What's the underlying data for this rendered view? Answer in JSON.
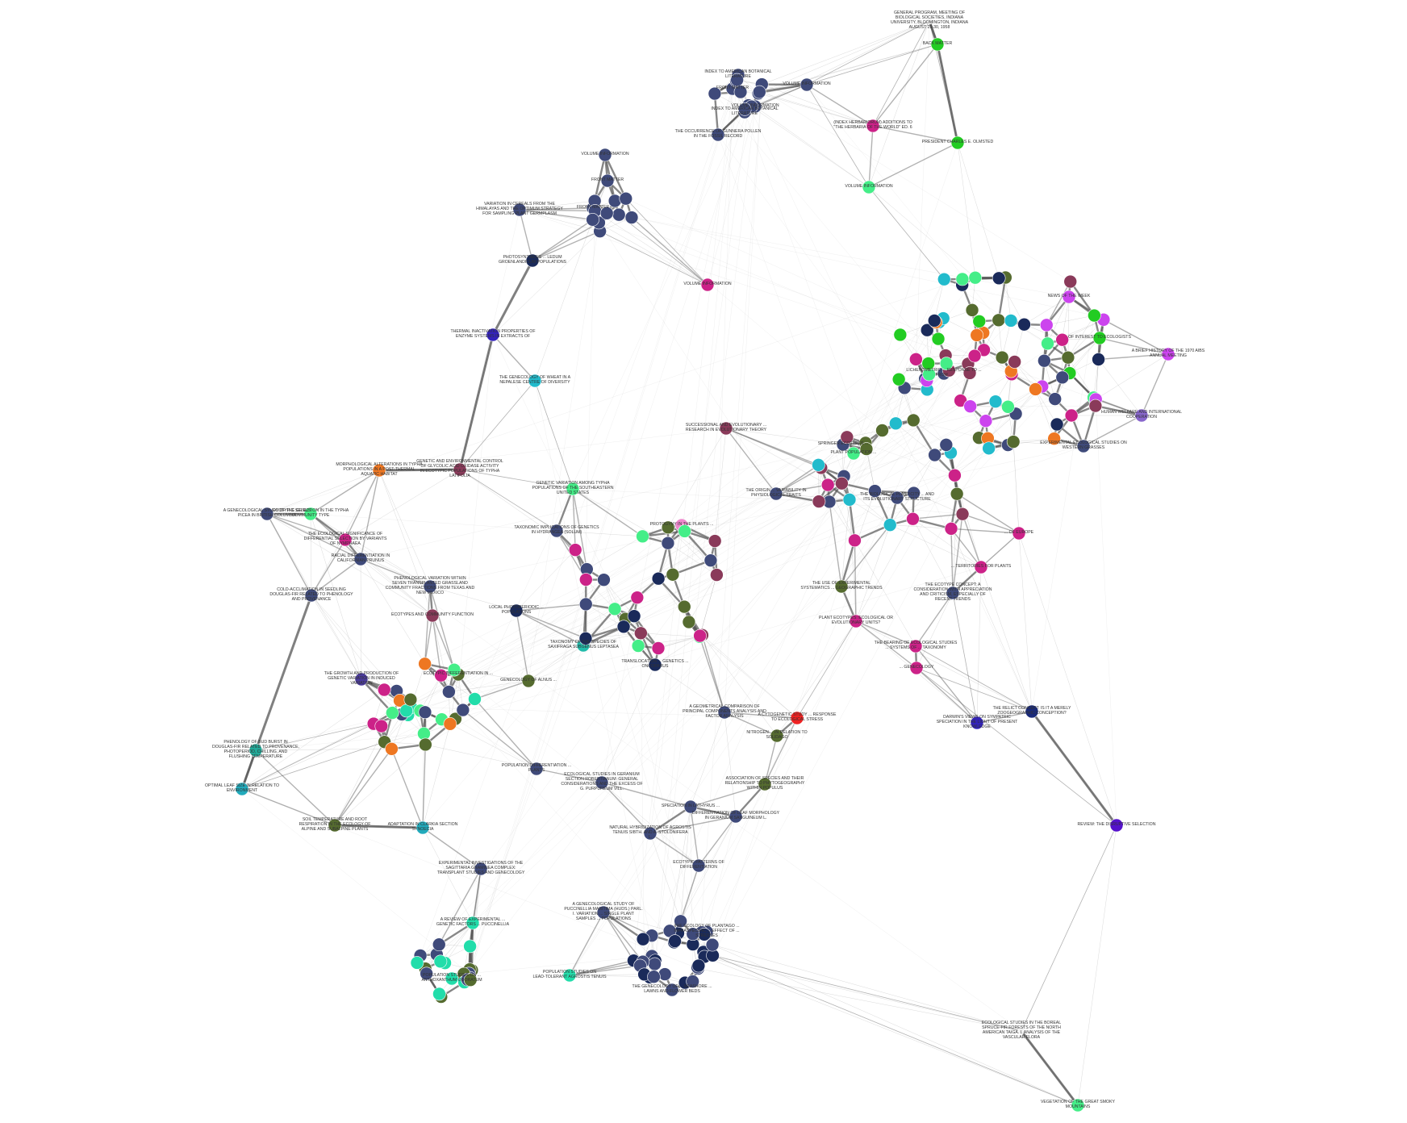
{
  "graph": {
    "edge_color": "#555555",
    "nodes": [
      {
        "id": "general-program-meeting",
        "label": "GENERAL PROGRAM, MEETING OF BIOLOGICAL SOCIETIES, INDIANA UNIVERSITY, BLOOMINGTON, INDIANA AUGUST 25-30, 1958",
        "color": "#f2f2f2"
      },
      {
        "id": "back-matter-top",
        "label": "BACK MATTER",
        "color": "#22cc22"
      },
      {
        "id": "president-olmsted",
        "label": "PRESIDENT CHARLES E. OLMSTED",
        "color": "#22cc22"
      },
      {
        "id": "index-herbarium",
        "label": "(INDEX HERBARIORUM) ADDITIONS TO \"THE HERBARIA OF THE WORLD\" ED. 6",
        "color": "#cc2288"
      },
      {
        "id": "volume-information-a",
        "label": "VOLUME INFORMATION",
        "color": "#44ee88"
      },
      {
        "id": "volume-information-b",
        "label": "VOLUME INFORMATION",
        "color": "#3f4a7a"
      },
      {
        "id": "index-american",
        "label": "INDEX TO AMERICAN BOTANICAL LITERATURE",
        "color": "#3f4a7a"
      },
      {
        "id": "index-to-american-2",
        "label": "INDEX TO AMERICAN BOTANICAL LITERATURE",
        "color": "#3f4a7a"
      },
      {
        "id": "front-matter-a",
        "label": "FRONT MATTER",
        "color": "#3f4a7a"
      },
      {
        "id": "volume-information-c",
        "label": "VOLUME INFORMATION",
        "color": "#3f4a7a"
      },
      {
        "id": "gunnera-pollen",
        "label": "THE OCCURRENCE OF GUNNERA POLLEN IN THE FOSSIL RECORD",
        "color": "#3f4a7a"
      },
      {
        "id": "volume-information-d",
        "label": "VOLUME INFORMATION",
        "color": "#3f4a7a"
      },
      {
        "id": "front-matter-b",
        "label": "FRONT MATTER",
        "color": "#3f4a7a"
      },
      {
        "id": "cereals-himalayas",
        "label": "VARIATION IN CEREALS FROM THE HIMALAYAS AND THE OPTIMUM STRATEGY FOR SAMPLING PLANT GERMPLASM",
        "color": "#3f4a7a"
      },
      {
        "id": "front-matter-c",
        "label": "FRONT MATTER",
        "color": "#3f4a7a"
      },
      {
        "id": "volume-information-magenta",
        "label": "VOLUME INFORMATION",
        "color": "#cc2288"
      },
      {
        "id": "ledum-photosynthesis",
        "label": "PHOTOSYNTHESIS ... LEDUM GROENLANDICUM POPULATIONS",
        "color": "#1a2a5a"
      },
      {
        "id": "thermal-inactivation",
        "label": "THERMAL INACTIVATION PROPERTIES OF ENZYME SYSTEMS IN EXTRACTS OF",
        "color": "#3322bb"
      },
      {
        "id": "genecology-wheat",
        "label": "THE GENECOLOGY OF WHEAT IN A NEPALESE CENTRE OF DIVERSITY",
        "color": "#22bbcc"
      },
      {
        "id": "genetic-environmental-control",
        "label": "GENETIC AND ENVIRONMENTAL CONTROL OF GLYCOLIC ACID OXIDASE ACTIVITY IN ECOTYPIC POPULATIONS OF TYPHA LATIFOLIA",
        "color": "#8a3a5a"
      },
      {
        "id": "morphological-typha",
        "label": "MORPHOLOGICAL ALTERATIONS IN TYPHA POPULATIONS IN A POST-THERMAL AQUATIC HABITAT",
        "color": "#ee7722"
      },
      {
        "id": "genecological-picea",
        "label": "A GENECOLOGICAL STUDY OF THE GENUS PICEA IN BRITISH COLUMBIA",
        "color": "#3f4a7a"
      },
      {
        "id": "typha-ecotype",
        "label": "ECOTYPIC SELECTION IN THE TYPHA COMMUNITY TYPE",
        "color": "#44ee88"
      },
      {
        "id": "nymphaea",
        "label": "THE ECOLOGICAL SIGNIFICANCE OF DIFFERENTIAL SELECTION BY VARIANTS OF NYMPHAEA",
        "color": "#cc2288"
      },
      {
        "id": "racial-californian",
        "label": "RACIAL DIFFERENTIATION IN CALIFORNIAN PRUNUS",
        "color": "#3f4a7a"
      },
      {
        "id": "cold-acclimation",
        "label": "COLD-ACCLIMATION IN SEEDLING DOUGLAS-FIR RELATED TO PHENOLOGY AND PROVENANCE",
        "color": "#3f4a7a"
      },
      {
        "id": "genetic-variation-typha",
        "label": "GENETIC VARIATION AMONG TYPHA POPULATIONS OF THE SOUTHEASTERN UNITED STATES",
        "color": "#44ee88"
      },
      {
        "id": "taxonomic-implications",
        "label": "TAXONOMIC IMPLICATIONS OF GENETICS IN HYDRANGEA (SOLUM)",
        "color": "#3f4a7a"
      },
      {
        "id": "protogyny",
        "label": "PROTOGYNY IN THE PLANTS ...",
        "color": "#ee88cc"
      },
      {
        "id": "phenological-variation",
        "label": "PHENOLOGICAL VARIATION WITHIN SEVEN TRANSPLANTED GRASSLAND COMMUNITY FRACTIONS FROM TEXAS AND NEW MEXICO",
        "color": "#3f4a7a"
      },
      {
        "id": "ecotypes-community-function",
        "label": "ECOTYPES AND COMMUNITY FUNCTION",
        "color": "#8a3a5a"
      },
      {
        "id": "local-photoperiod",
        "label": "LOCAL PHOTOPERIODIC ... POPULATIONS",
        "color": "#1a2a5a"
      },
      {
        "id": "taxonomy-saxifraga",
        "label": "TAXONOMY OF THE SPECIES OF SAXIFRAGA SUBGENUS LEPTASEA",
        "color": "#22bbaa"
      },
      {
        "id": "growth-and-production",
        "label": "THE GROWTH AND PRODUCTION OF GENETIC VARIATION IN INDUCED VARIATION",
        "color": "#4a3a9a"
      },
      {
        "id": "ecotypic-differentiation",
        "label": "ECOTYPIC DIFFERENTIATION IN ...",
        "color": "#556b2f"
      },
      {
        "id": "genecological-alnus",
        "label": "GENECOLOGY OF ALNUS ...",
        "color": "#556b2f"
      },
      {
        "id": "phenology-douglas",
        "label": "PHENOLOGY OF BUD BURST IN DOUGLAS-FIR RELATED TO PROVENANCE, PHOTOPERIOD, CHILLING, AND FLUSHING TEMPERATURE",
        "color": "#22aa99"
      },
      {
        "id": "optimal-leaf",
        "label": "OPTIMAL LEAF SIZE IN RELATION TO ENVIRONMENT",
        "color": "#22aabb"
      },
      {
        "id": "soil-temperature",
        "label": "SOIL TEMPERATURE AND ROOT RESPIRATION IN THE ECOLOGY OF ALPINE AND SUBALPINE PLANTS",
        "color": "#556b2f"
      },
      {
        "id": "adaptation-clarkia",
        "label": "ADAPTATION IN CLARKIA SECTION SYNOECIA",
        "color": "#22aabb"
      },
      {
        "id": "experimental-investigations",
        "label": "EXPERIMENTAL INVESTIGATIONS OF THE SAGITTARIA GRAMINEA COMPLEX: TRANSPLANT STUDIES AND GENECOLOGY",
        "color": "#3f4a7a"
      },
      {
        "id": "puccinellia",
        "label": "A REVIEW OF EXPERIMENTAL ... GENETIC FACTORS ... PUCCINELLIA",
        "color": "#22ddaa"
      },
      {
        "id": "population-studies-odoratum",
        "label": "POPULATION STUDIES ON ... ANTHOXANTHUM ODORATUM",
        "color": "#22ddaa"
      },
      {
        "id": "population-studies-agrostis",
        "label": "POPULATION STUDIES ON LEAD-TOLERANT AGROSTIS TENUIS",
        "color": "#22ddaa"
      },
      {
        "id": "population-differentiation",
        "label": "POPULATION DIFFERENTIATION ... PLANTS",
        "color": "#3f4a7a"
      },
      {
        "id": "ecological-geranium",
        "label": "ECOLOGICAL STUDIES IN GERANIUM SECTION ROBERTIANUM: GENERAL CONSIDERATIONS AND THE EXCESS OF G. PURPUREUM VILL.",
        "color": "#3f4a7a"
      },
      {
        "id": "speciation-lathyrus",
        "label": "SPECIATION IN LATHYRUS ...",
        "color": "#3f4a7a"
      },
      {
        "id": "natural-hybridization",
        "label": "NATURAL HYBRIDIZATION OF AGROSTIS TENUIS SIBTH. AND A. STOLONIFERA L.",
        "color": "#3f4a7a"
      },
      {
        "id": "differentiation-geranium",
        "label": "DIFFERENTIATION OF LEAF MORPHOLOGY IN GERANIUM SANGUINEUM L.",
        "color": "#3f4a7a"
      },
      {
        "id": "ecotypic-patterns",
        "label": "ECOTYPIC PATTERNS OF DIFFERENTIATION",
        "color": "#3f4a7a"
      },
      {
        "id": "genecological-bromus",
        "label": "A GENECOLOGICAL STUDY OF PUCCINELLIA MARITIMA (HUDS.) PARL. I. VARIATION ... SINGLE PLANT SAMPLES ... POPULATIONS",
        "color": "#3f4a7a"
      },
      {
        "id": "genecology-seashore",
        "label": "THE GENECOLOGY OF ... SEASHORE ... LAWNS AND FLOWER BEDS",
        "color": "#3f4a7a"
      },
      {
        "id": "ecology-plantago",
        "label": "THE ECOLOGY OF PLANTAGO ... INFRASPECIFIC ... EFFECT OF ... STRESSES",
        "color": "#3f4a7a"
      },
      {
        "id": "geometric-comparison",
        "label": "A GEOMETRICAL COMPARISON OF PRINCIPAL COMPONENTS ANALYSIS AND FACTOR ANALYSIS",
        "color": "#3f4a7a"
      },
      {
        "id": "association-species",
        "label": "ASSOCIATION OF SPECIES AND THEIR RELATIONSHIP TO PHYTOGEOGRAPHY WITHIN POPULUS",
        "color": "#556b2f"
      },
      {
        "id": "cytogenetic-response",
        "label": "A CYTOGENETIC STUDY ... RESPONSE TO ECOLOGICAL STRESS",
        "color": "#ee2222"
      },
      {
        "id": "nitrogen-solidago",
        "label": "NITROGEN ... IN RELATION TO SOLIDAGO",
        "color": "#556b2f"
      },
      {
        "id": "translocation-genetics",
        "label": "TRANSLOCATION ... GENETICS ... ONCOPARUS",
        "color": "#1a2a5a"
      },
      {
        "id": "relict-zoogeographic",
        "label": "THE RELICT CONCEPT: IS IT A MERELY ZOOGEOGRAPHIC CONCEPTION?",
        "color": "#1a2a7a"
      },
      {
        "id": "darwins-views",
        "label": "DARWIN'S VIEWS ON SYMPATRIC SPECIATION IN THE LIGHT OF PRESENT KNOWLEDGE",
        "color": "#3322bb"
      },
      {
        "id": "review-disruptive",
        "label": "REVIEW: THE DISRUPTIVE SELECTION",
        "color": "#5511cc"
      },
      {
        "id": "boreal-spruce",
        "label": "ECOLOGICAL STUDIES IN THE BOREAL SPRUCE-FIR FORESTS OF THE NORTH AMERICAN TAIGA. I. ANALYSIS OF THE VASCULAR FLORA",
        "color": "#f2f2f2"
      },
      {
        "id": "great-smoky",
        "label": "VEGETATION OF THE GREAT SMOKY MOUNTAINS",
        "color": "#44ee88"
      },
      {
        "id": "biological-plasticity",
        "label": "THE BIOLOGICAL PLASTICITY ... AND ITS EVOLUTIONARY STRUCTURE",
        "color": "#3f4a7a"
      },
      {
        "id": "ecotypic-concept",
        "label": "THE ECOTYPE CONCEPT: A CONSIDERATION WITH APPRECIATION AND CRITICISM, ESPECIALLY OF RECENT TRENDS",
        "color": "#3f4a7a"
      },
      {
        "id": "use-of-experimental",
        "label": "THE USE OF EXPERIMENTAL SYSTEMATICS ... GEOGRAPHIC TRENDS",
        "color": "#556b2f"
      },
      {
        "id": "plant-ecotypes",
        "label": "PLANT ECOTYPES: ECOLOGICAL OR EVOLUTIONARY UNITS?",
        "color": "#cc2288"
      },
      {
        "id": "successional-evolutionary",
        "label": "SUCCESSIONAL AND EVOLUTIONARY ... RESEARCH IN EVOLUTIONARY THEORY",
        "color": "#8a3a5a"
      },
      {
        "id": "springer-ecotypes",
        "label": "SPRINGER ECOTYPES ...",
        "color": "#3f4a7a"
      },
      {
        "id": "plant-population",
        "label": "PLANT POPULATION ...",
        "color": "#44ee88"
      },
      {
        "id": "origin-variability",
        "label": "THE ORIGIN ... VARIABILITY IN PHYSIOLOGICAL TRAITS",
        "color": "#3f4a7a"
      },
      {
        "id": "lichenometric",
        "label": "LICHENOMETRIC ... RESPONSE TO ... FROM ...",
        "color": "#3f4a7a"
      },
      {
        "id": "birds-news",
        "label": "NEWS OF THE WEEK",
        "color": "#cc44ee"
      },
      {
        "id": "brief-history-1970",
        "label": "A BRIEF HISTORY OF THE 1970 AIBS ANNUAL MEETING",
        "color": "#cc44ee"
      },
      {
        "id": "interest-ecologists",
        "label": "OF INTEREST TO ECOLOGISTS",
        "color": "#22cc22"
      },
      {
        "id": "human-welfare",
        "label": "HUMAN WELFARE AND INTERNATIONAL COOPERATION",
        "color": "#8866cc"
      },
      {
        "id": "experimental-ecological",
        "label": "EXPERIMENTAL ECOLOGICAL STUDIES ON WESTERN GRASSES",
        "color": "#3f4a7a"
      },
      {
        "id": "ecological-studies-europe",
        "label": "... OF EUROPE",
        "color": "#cc2288"
      },
      {
        "id": "territories-plants",
        "label": "... TERRITORIES FOR PLANTS",
        "color": "#cc2288"
      },
      {
        "id": "fertile-genecology",
        "label": "... GENECOLOGY",
        "color": "#cc2288"
      },
      {
        "id": "bearing-of-ecological",
        "label": "THE BEARING OF ECOLOGICAL STUDIES ... SYSTEMS OF ... TAXONOMY",
        "color": "#cc2288"
      }
    ]
  }
}
